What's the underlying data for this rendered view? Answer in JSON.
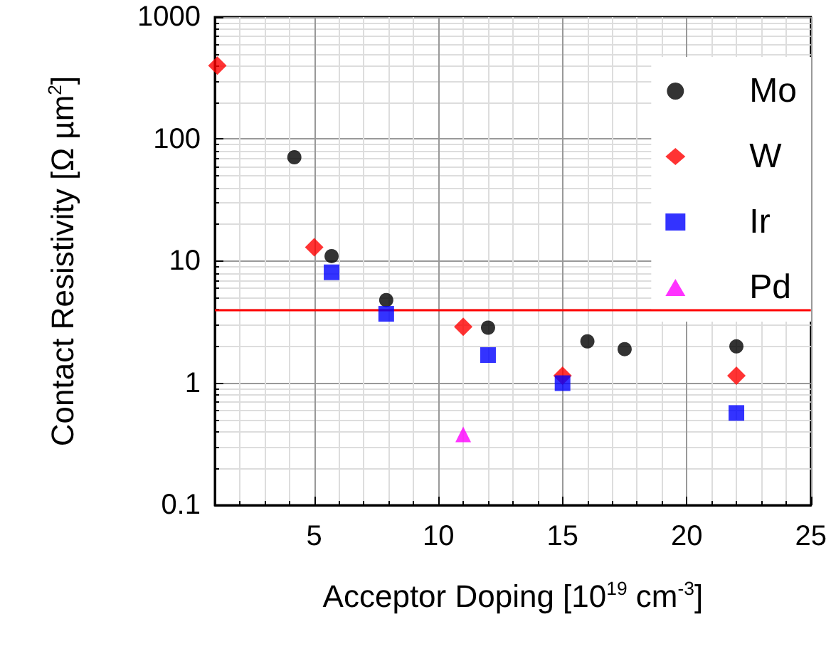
{
  "chart_data": {
    "type": "scatter",
    "xlabel": "Acceptor Doping [10$^{19}$ cm$^{-3}$]",
    "ylabel": "Contact Resistivity [Ω µm$^{2}$]",
    "xlim": [
      1,
      25
    ],
    "xticks": [
      5,
      10,
      15,
      20,
      25
    ],
    "ylim": [
      0.1,
      1000
    ],
    "yticks": [
      0.1,
      1,
      10,
      100,
      1000
    ],
    "log": "y",
    "grid": true,
    "legend": "top right",
    "series": [
      {
        "name": "Mo",
        "color": "#000000",
        "marker": "circle",
        "x": [
          4.2,
          5.7,
          7.9,
          12,
          16,
          17.5,
          22
        ],
        "values": [
          71,
          11,
          4.8,
          2.85,
          2.2,
          1.9,
          2.0
        ]
      },
      {
        "name": "W",
        "color": "#ff0000",
        "marker": "diamond",
        "x": [
          1.1,
          5,
          11,
          15,
          22
        ],
        "values": [
          400,
          13,
          2.9,
          1.15,
          1.15
        ]
      },
      {
        "name": "Ir",
        "color": "#0000ff",
        "marker": "square",
        "x": [
          5.7,
          7.9,
          12,
          15,
          22
        ],
        "values": [
          8.1,
          3.7,
          1.7,
          1.0,
          0.57
        ]
      },
      {
        "name": "Pd",
        "color": "#ff00ff",
        "marker": "triangle",
        "x": [
          11
        ],
        "values": [
          0.38
        ]
      }
    ],
    "ref_lines": [
      {
        "axis": "y",
        "value": 4,
        "color": "#ff0000",
        "line_style": "solid"
      }
    ]
  }
}
